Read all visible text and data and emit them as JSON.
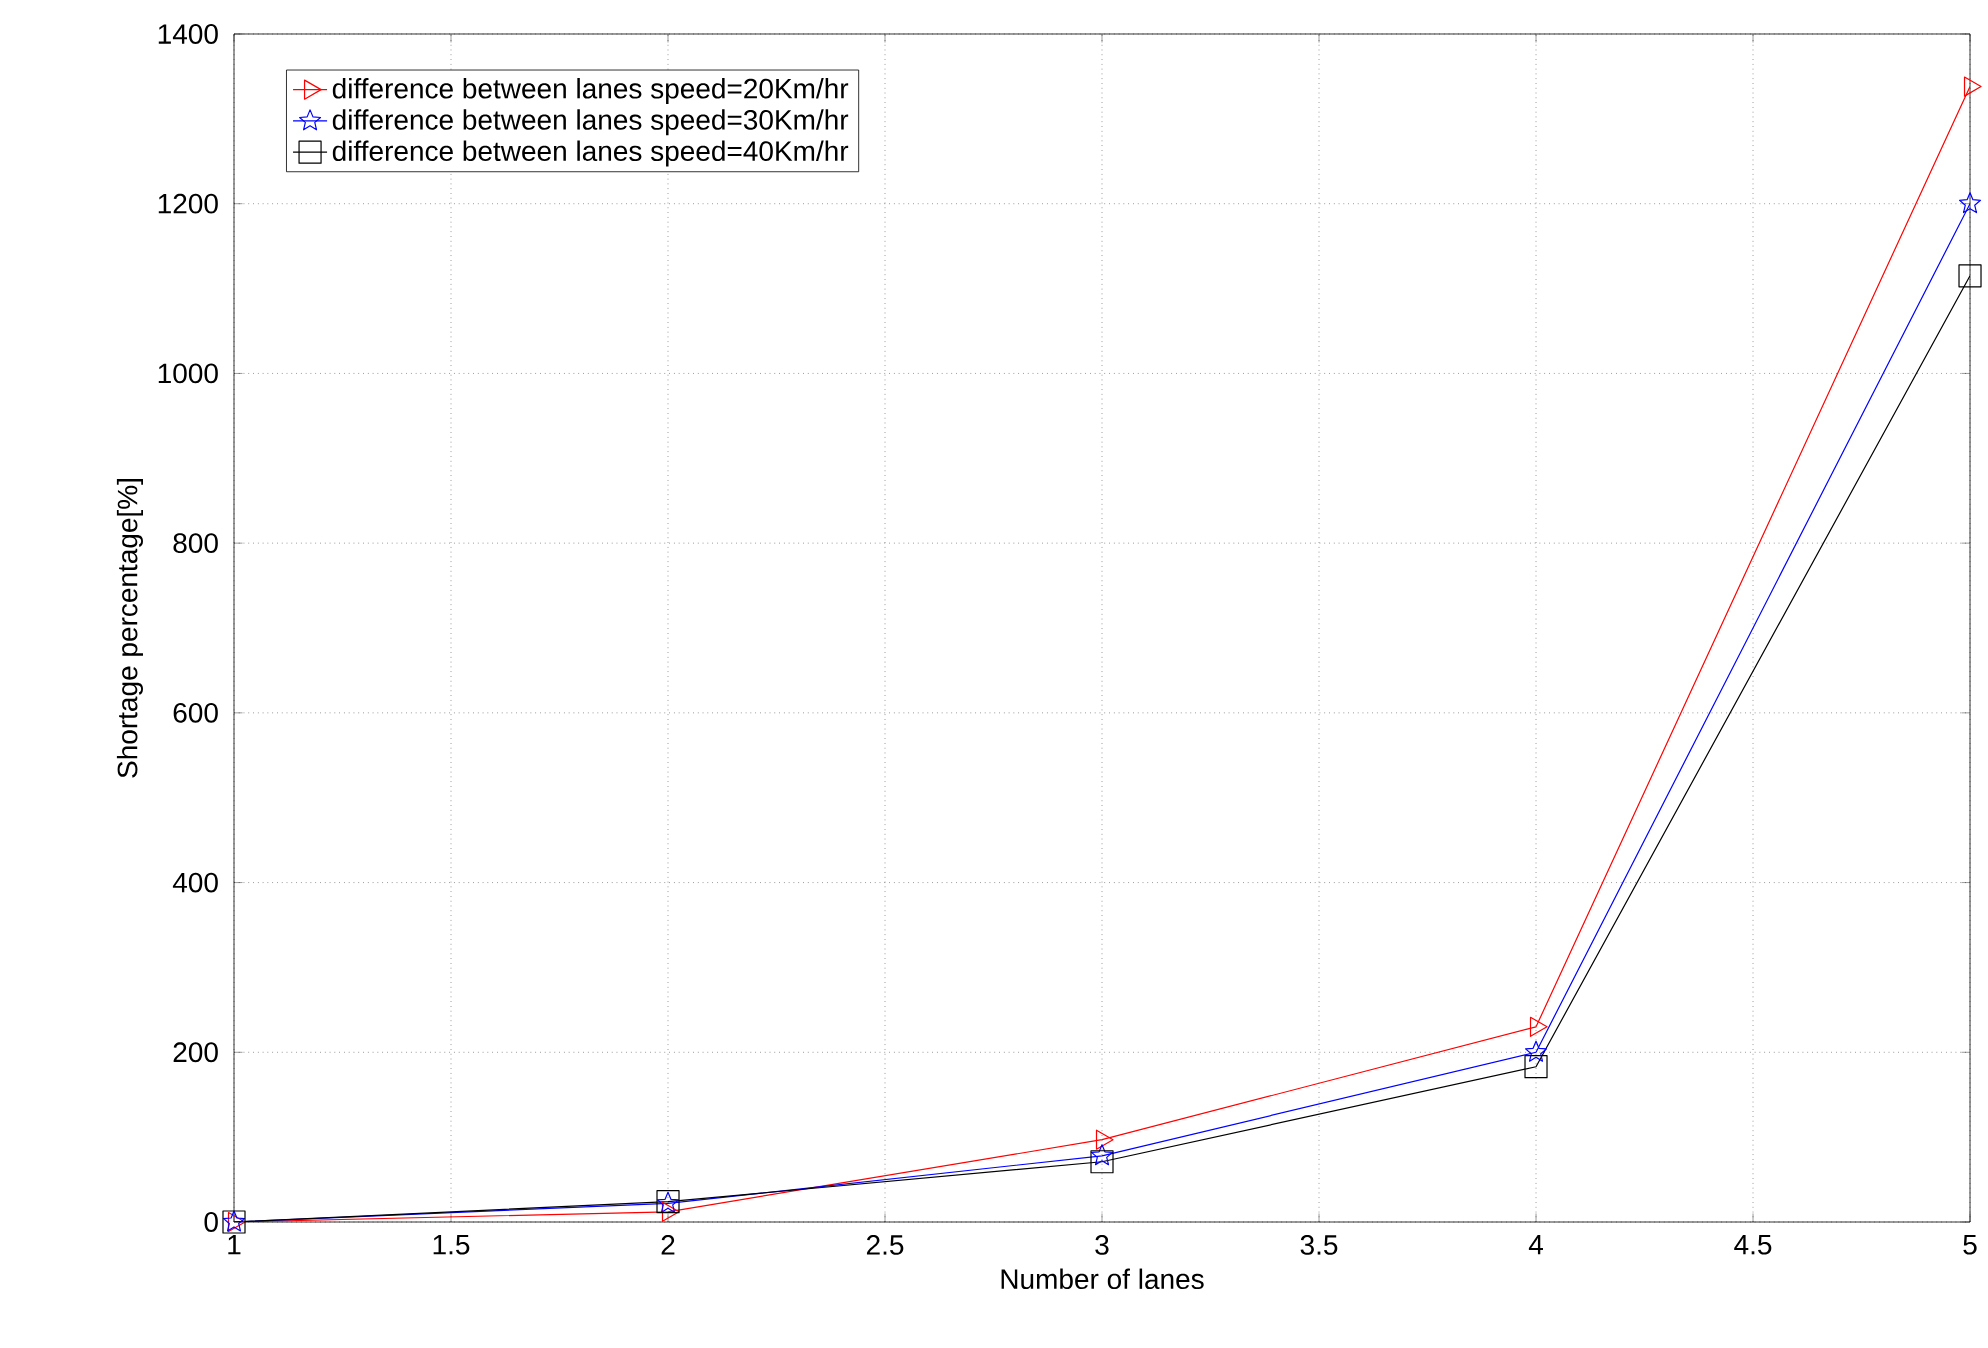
{
  "chart_data": {
    "type": "line",
    "xlabel": "Number of lanes",
    "ylabel": "Shortage percentage[%]",
    "x": [
      1,
      2,
      3,
      4,
      5
    ],
    "series": [
      {
        "name": "difference between lanes speed=20Km/hr",
        "color": "#ff0000",
        "marker": "triangle",
        "values": [
          0,
          12,
          97,
          230,
          1338
        ]
      },
      {
        "name": "difference between lanes speed=30Km/hr",
        "color": "#0000ff",
        "marker": "star",
        "values": [
          0,
          22,
          78,
          200,
          1200
        ]
      },
      {
        "name": "difference between lanes speed=40Km/hr",
        "color": "#000000",
        "marker": "square",
        "values": [
          0,
          24,
          71,
          183,
          1115
        ]
      }
    ],
    "xlim": [
      1,
      5
    ],
    "ylim": [
      0,
      1400
    ],
    "xticks": [
      1,
      1.5,
      2,
      2.5,
      3,
      3.5,
      4,
      4.5,
      5
    ],
    "yticks": [
      0,
      200,
      400,
      600,
      800,
      1000,
      1200,
      1400
    ],
    "grid": true,
    "legend": "top left",
    "line_style": "solid"
  }
}
